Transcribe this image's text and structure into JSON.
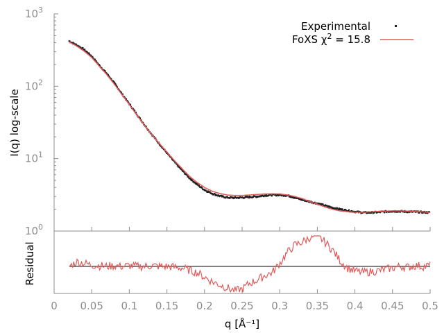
{
  "chart_data": [
    {
      "type": "scatter",
      "panel": "main",
      "title": "",
      "xlabel": "q [Å⁻¹]",
      "ylabel": "I(q) log-scale",
      "xlim": [
        0,
        0.5
      ],
      "ylim": [
        1,
        1000
      ],
      "yscale": "log",
      "grid": false,
      "legend_position": "top-right",
      "y_tick_labels": [
        {
          "base": "10",
          "exp": "0"
        },
        {
          "base": "10",
          "exp": "1"
        },
        {
          "base": "10",
          "exp": "2"
        },
        {
          "base": "10",
          "exp": "3"
        }
      ],
      "legend": {
        "experimental": "Experimental",
        "fit_prefix": "FoXS χ",
        "fit_exp": "2",
        "fit_suffix": " = 15.8"
      },
      "colors": {
        "experimental": "#1f1f1f",
        "fit": "#e05a5a",
        "axis": "#8c8c8c"
      },
      "series": [
        {
          "name": "Experimental",
          "x": [
            0.02,
            0.03,
            0.04,
            0.05,
            0.06,
            0.07,
            0.08,
            0.09,
            0.1,
            0.11,
            0.12,
            0.13,
            0.14,
            0.15,
            0.16,
            0.17,
            0.18,
            0.19,
            0.2,
            0.21,
            0.22,
            0.23,
            0.24,
            0.25,
            0.26,
            0.27,
            0.28,
            0.29,
            0.3,
            0.31,
            0.32,
            0.33,
            0.34,
            0.35,
            0.36,
            0.37,
            0.38,
            0.39,
            0.4,
            0.41,
            0.42,
            0.43,
            0.44,
            0.45,
            0.46,
            0.47,
            0.48,
            0.49,
            0.5
          ],
          "y": [
            420,
            370,
            320,
            260,
            195,
            150,
            111,
            79,
            57,
            41,
            29.5,
            21.5,
            16,
            12,
            9.0,
            6.9,
            5.4,
            4.4,
            3.7,
            3.3,
            3.05,
            2.9,
            2.88,
            2.9,
            2.95,
            3.0,
            3.1,
            3.15,
            3.15,
            3.1,
            2.9,
            2.7,
            2.55,
            2.4,
            2.25,
            2.1,
            2.0,
            1.92,
            1.85,
            1.8,
            1.8,
            1.82,
            1.85,
            1.88,
            1.87,
            1.85,
            1.84,
            1.82,
            1.8
          ]
        },
        {
          "name": "FoXS χ2 = 15.8",
          "x": [
            0.02,
            0.03,
            0.04,
            0.05,
            0.06,
            0.07,
            0.08,
            0.09,
            0.1,
            0.11,
            0.12,
            0.13,
            0.14,
            0.15,
            0.16,
            0.17,
            0.18,
            0.19,
            0.2,
            0.21,
            0.22,
            0.23,
            0.24,
            0.25,
            0.26,
            0.27,
            0.28,
            0.29,
            0.3,
            0.31,
            0.32,
            0.33,
            0.34,
            0.35,
            0.36,
            0.37,
            0.38,
            0.39,
            0.4,
            0.41,
            0.42,
            0.43,
            0.44,
            0.45,
            0.46,
            0.47,
            0.48,
            0.49,
            0.5
          ],
          "y": [
            410,
            360,
            305,
            250,
            190,
            145,
            107,
            77,
            56,
            40,
            29,
            21.3,
            16.2,
            12.3,
            9.4,
            7.3,
            5.7,
            4.7,
            4.0,
            3.55,
            3.3,
            3.15,
            3.1,
            3.1,
            3.15,
            3.2,
            3.25,
            3.27,
            3.25,
            3.15,
            3.0,
            2.8,
            2.55,
            2.35,
            2.15,
            2.0,
            1.9,
            1.85,
            1.82,
            1.82,
            1.84,
            1.86,
            1.88,
            1.9,
            1.9,
            1.88,
            1.86,
            1.84,
            1.8
          ]
        }
      ]
    },
    {
      "type": "line",
      "panel": "residual",
      "title": "",
      "xlabel": "q [Å⁻¹]",
      "ylabel": "Residual",
      "xlim": [
        0,
        0.5
      ],
      "x_tick_labels": [
        "0",
        "0.05",
        "0.1",
        "0.15",
        "0.2",
        "0.25",
        "0.3",
        "0.35",
        "0.4",
        "0.45",
        "0.5"
      ],
      "zero_line": true,
      "series": [
        {
          "name": "Residual",
          "x": [
            0.02,
            0.03,
            0.04,
            0.05,
            0.06,
            0.07,
            0.08,
            0.09,
            0.1,
            0.11,
            0.12,
            0.13,
            0.14,
            0.15,
            0.16,
            0.17,
            0.18,
            0.19,
            0.2,
            0.21,
            0.22,
            0.23,
            0.24,
            0.25,
            0.26,
            0.27,
            0.28,
            0.29,
            0.3,
            0.31,
            0.32,
            0.33,
            0.34,
            0.35,
            0.36,
            0.37,
            0.38,
            0.39,
            0.4,
            0.41,
            0.42,
            0.43,
            0.44,
            0.45,
            0.46,
            0.47,
            0.48,
            0.49,
            0.5
          ],
          "y": [
            0.0,
            0.3,
            0.2,
            0.1,
            0.05,
            0.0,
            0.05,
            0.0,
            0.05,
            0.0,
            0.0,
            0.05,
            0.0,
            0.0,
            -0.05,
            -0.1,
            -0.25,
            -0.4,
            -0.7,
            -1.0,
            -1.2,
            -1.4,
            -1.6,
            -1.5,
            -1.1,
            -0.9,
            -0.6,
            -0.4,
            0.2,
            0.9,
            1.4,
            1.6,
            1.9,
            2.0,
            1.6,
            1.1,
            0.4,
            -0.1,
            -0.3,
            -0.4,
            -0.35,
            -0.3,
            -0.2,
            -0.1,
            0.0,
            -0.05,
            0.05,
            0.0,
            0.05
          ]
        }
      ]
    }
  ]
}
